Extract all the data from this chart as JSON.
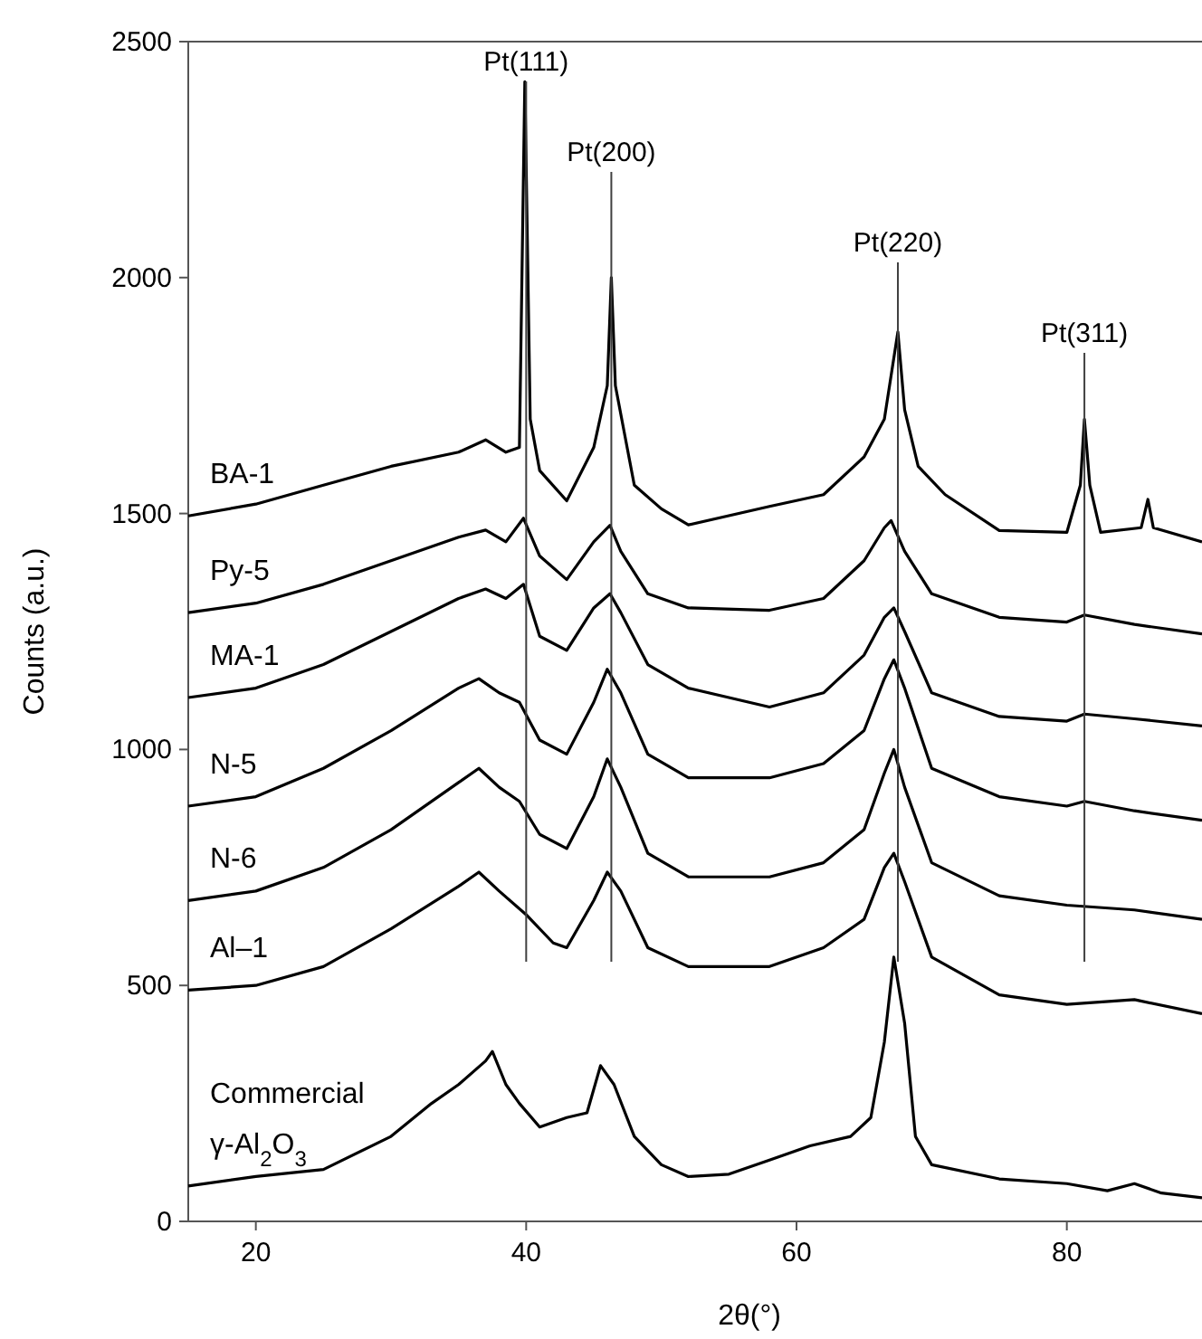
{
  "chart_data": {
    "type": "line",
    "xlabel": "2θ(°)",
    "ylabel": "Counts (a.u.)",
    "xlim": [
      15,
      90
    ],
    "xticks": [
      20,
      40,
      60,
      80
    ],
    "ylim": [
      0,
      2500
    ],
    "yticks": [
      0,
      500,
      1000,
      1500,
      2000,
      2500
    ],
    "marker": "none",
    "line_style": "solid",
    "ref_lines": [
      {
        "axis": "x",
        "value": 40,
        "label": "Pt(111)",
        "color": "#404040"
      },
      {
        "axis": "x",
        "value": 46.3,
        "label": "Pt(200)",
        "color": "#404040"
      },
      {
        "axis": "x",
        "value": 67.5,
        "label": "Pt(220)",
        "color": "#404040"
      },
      {
        "axis": "x",
        "value": 81.3,
        "label": "Pt(311)",
        "color": "#404040"
      }
    ],
    "series": [
      {
        "name": "BA-1",
        "color": "#000000",
        "x": [
          15,
          20,
          25,
          30,
          35,
          37,
          38.5,
          39.5,
          39.9,
          40.3,
          41,
          43,
          45,
          46,
          46.3,
          46.6,
          48,
          50,
          52,
          58,
          62,
          65,
          66.5,
          67.5,
          68,
          69,
          71,
          75,
          80,
          81,
          81.3,
          81.7,
          82.5,
          85.5,
          86,
          86.4,
          90
        ],
        "values": [
          1495,
          1520,
          1560,
          1600,
          1630,
          1656,
          1630,
          1640,
          2415,
          1700,
          1591,
          1527,
          1640,
          1771,
          2000,
          1771,
          1560,
          1510,
          1476,
          1515,
          1540,
          1620,
          1700,
          1885,
          1720,
          1600,
          1540,
          1464,
          1460,
          1560,
          1700,
          1560,
          1460,
          1470,
          1530,
          1470,
          1440
        ]
      },
      {
        "name": "Py-5",
        "color": "#000000",
        "x": [
          15,
          20,
          25,
          30,
          35,
          37,
          38.5,
          39.8,
          41,
          43,
          45,
          46.2,
          47,
          49,
          52,
          58,
          62,
          65,
          66.5,
          67,
          68,
          70,
          75,
          80,
          81.3,
          85,
          90
        ],
        "values": [
          1290,
          1310,
          1350,
          1400,
          1450,
          1465,
          1440,
          1490,
          1410,
          1360,
          1440,
          1475,
          1420,
          1330,
          1300,
          1295,
          1320,
          1400,
          1470,
          1485,
          1420,
          1330,
          1280,
          1270,
          1285,
          1265,
          1245
        ]
      },
      {
        "name": "MA-1",
        "color": "#000000",
        "x": [
          15,
          20,
          25,
          30,
          35,
          37,
          38.5,
          39.8,
          41,
          43,
          45,
          46.2,
          47,
          49,
          52,
          58,
          62,
          65,
          66.5,
          67.2,
          68,
          70,
          75,
          80,
          81.3,
          85,
          90
        ],
        "values": [
          1110,
          1130,
          1180,
          1250,
          1320,
          1340,
          1320,
          1350,
          1240,
          1210,
          1300,
          1330,
          1290,
          1180,
          1130,
          1090,
          1120,
          1200,
          1280,
          1300,
          1250,
          1120,
          1070,
          1060,
          1075,
          1065,
          1050
        ]
      },
      {
        "name": "N-5",
        "color": "#000000",
        "x": [
          15,
          20,
          25,
          30,
          35,
          36.5,
          38,
          39.5,
          41,
          43,
          45,
          46,
          47,
          49,
          52,
          58,
          62,
          65,
          66.5,
          67.2,
          68,
          70,
          75,
          80,
          81.3,
          85,
          90
        ],
        "values": [
          880,
          900,
          960,
          1040,
          1130,
          1150,
          1120,
          1100,
          1020,
          990,
          1100,
          1170,
          1120,
          990,
          940,
          940,
          970,
          1040,
          1150,
          1190,
          1130,
          960,
          900,
          880,
          890,
          870,
          850
        ]
      },
      {
        "name": "N-6",
        "color": "#000000",
        "x": [
          15,
          20,
          25,
          30,
          35,
          36.5,
          38,
          39.5,
          41,
          43,
          45,
          46,
          47,
          49,
          52,
          58,
          62,
          65,
          66.5,
          67.2,
          68,
          70,
          75,
          80,
          85,
          90
        ],
        "values": [
          680,
          700,
          750,
          830,
          930,
          960,
          920,
          890,
          820,
          790,
          900,
          980,
          920,
          780,
          730,
          730,
          760,
          830,
          950,
          1000,
          920,
          760,
          690,
          670,
          660,
          640
        ]
      },
      {
        "name": "Al–1",
        "color": "#000000",
        "x": [
          15,
          20,
          25,
          30,
          35,
          36.5,
          38,
          40,
          42,
          43,
          45,
          46,
          47,
          49,
          52,
          58,
          62,
          65,
          66.5,
          67.2,
          68,
          70,
          75,
          80,
          85,
          90
        ],
        "values": [
          490,
          500,
          540,
          620,
          710,
          740,
          700,
          650,
          590,
          580,
          680,
          740,
          700,
          580,
          540,
          540,
          580,
          640,
          750,
          780,
          720,
          560,
          480,
          460,
          470,
          440
        ]
      },
      {
        "name": "Commercial γ-Al$_{2}$O$_{3}$",
        "color": "#000000",
        "x": [
          15,
          20,
          25,
          30,
          33,
          35,
          37,
          37.5,
          38.5,
          39.5,
          41,
          43,
          44.5,
          45.5,
          46.5,
          48,
          50,
          52,
          55,
          58,
          61,
          64,
          65.5,
          66.5,
          67.2,
          68,
          68.8,
          70,
          75,
          80,
          83,
          85,
          87,
          90
        ],
        "values": [
          75,
          95,
          110,
          180,
          250,
          290,
          340,
          360,
          290,
          250,
          200,
          220,
          230,
          330,
          290,
          180,
          120,
          95,
          100,
          130,
          160,
          180,
          220,
          380,
          560,
          420,
          180,
          120,
          90,
          80,
          65,
          80,
          60,
          50
        ]
      }
    ]
  }
}
